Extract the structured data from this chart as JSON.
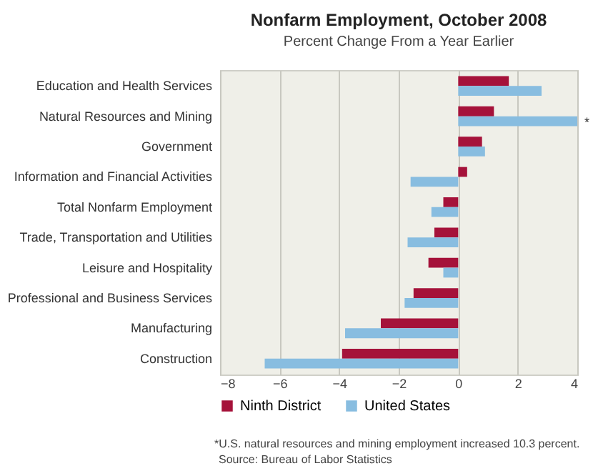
{
  "chart_data": {
    "type": "bar",
    "orientation": "horizontal",
    "title": "Nonfarm Employment, October 2008",
    "subtitle": "Percent Change From a Year Earlier",
    "categories": [
      "Education and Health Services",
      "Natural Resources and Mining",
      "Government",
      "Information and Financial Activities",
      "Total Nonfarm Employment",
      "Trade, Transportation and Utilities",
      "Leisure and Hospitality",
      "Professional and Business Services",
      "Manufacturing",
      "Construction"
    ],
    "series": [
      {
        "name": "Ninth District",
        "color": "#a5123a",
        "values": [
          1.7,
          1.2,
          0.8,
          0.3,
          -0.5,
          -0.8,
          -1.0,
          -1.5,
          -2.6,
          -3.9
        ]
      },
      {
        "name": "United States",
        "color": "#88bde0",
        "values": [
          2.8,
          4,
          0.9,
          -1.6,
          -0.9,
          -1.7,
          -0.5,
          -1.8,
          -3.8,
          -6.5
        ]
      }
    ],
    "xlim": [
      -8,
      4
    ],
    "xticks": [
      -8,
      -6,
      -4,
      -2,
      0,
      2,
      4
    ],
    "grid": "x",
    "legend": "bottom",
    "annotations": [
      {
        "text": "*",
        "x": 4,
        "y": "Natural Resources and Mining"
      },
      "*U.S. natural resources and mining employment increased 10.3 percent.",
      "Source: Bureau of Labor Statistics"
    ]
  }
}
